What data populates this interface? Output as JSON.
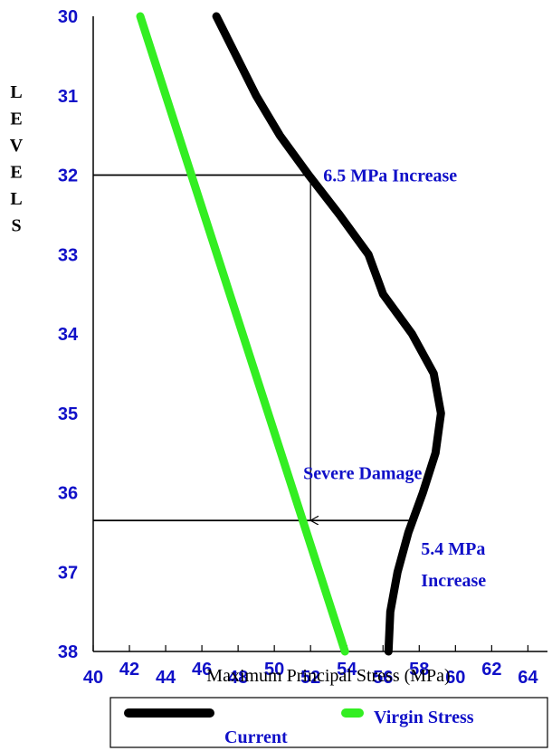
{
  "chart_data": {
    "type": "line",
    "xlabel": "Maximum Principal Stress (MPa)",
    "ylabel": "LEVELS",
    "xlim": [
      40,
      65
    ],
    "ylim": [
      30,
      38
    ],
    "y_inverted": true,
    "x_ticks": [
      40,
      42,
      44,
      46,
      48,
      50,
      52,
      54,
      56,
      58,
      60,
      62,
      64
    ],
    "y_ticks": [
      30,
      31,
      32,
      33,
      34,
      35,
      36,
      37,
      38
    ],
    "grid": false,
    "legend_position": "bottom",
    "series": [
      {
        "name": "Current",
        "color": "#000000",
        "points": [
          [
            46.8,
            30.0
          ],
          [
            47.9,
            30.5
          ],
          [
            49.0,
            31.0
          ],
          [
            50.3,
            31.5
          ],
          [
            51.9,
            32.0
          ],
          [
            53.6,
            32.5
          ],
          [
            55.2,
            33.0
          ],
          [
            56.0,
            33.5
          ],
          [
            57.6,
            34.0
          ],
          [
            58.8,
            34.5
          ],
          [
            59.2,
            35.0
          ],
          [
            58.9,
            35.5
          ],
          [
            58.2,
            36.0
          ],
          [
            57.4,
            36.5
          ],
          [
            56.8,
            37.0
          ],
          [
            56.4,
            37.5
          ],
          [
            56.3,
            38.0
          ]
        ]
      },
      {
        "name": "Virgin Stress",
        "color": "#33ee22",
        "points": [
          [
            42.6,
            30.0
          ],
          [
            53.9,
            38.0
          ]
        ]
      }
    ],
    "annotations": [
      {
        "text": "6.5 MPa Increase",
        "x": 52.7,
        "y": 32.0,
        "color": "#1010c8"
      },
      {
        "text": "Severe Damage",
        "x": 51.6,
        "y": 35.75,
        "color": "#1010c8"
      },
      {
        "text": "5.4 MPa",
        "x": 58.1,
        "y": 36.7,
        "color": "#1010c8"
      },
      {
        "text": "Increase",
        "x": 58.1,
        "y": 37.1,
        "color": "#1010c8"
      }
    ],
    "reference_lines": [
      {
        "orientation": "horizontal",
        "y": 32.0,
        "x_from": 40,
        "x_to": 51.9
      },
      {
        "orientation": "horizontal",
        "y": 36.35,
        "x_from": 40,
        "x_to": 57.8
      },
      {
        "orientation": "vertical-arrow",
        "x": 52.0,
        "y_from": 32.0,
        "y_to": 36.35
      }
    ]
  }
}
